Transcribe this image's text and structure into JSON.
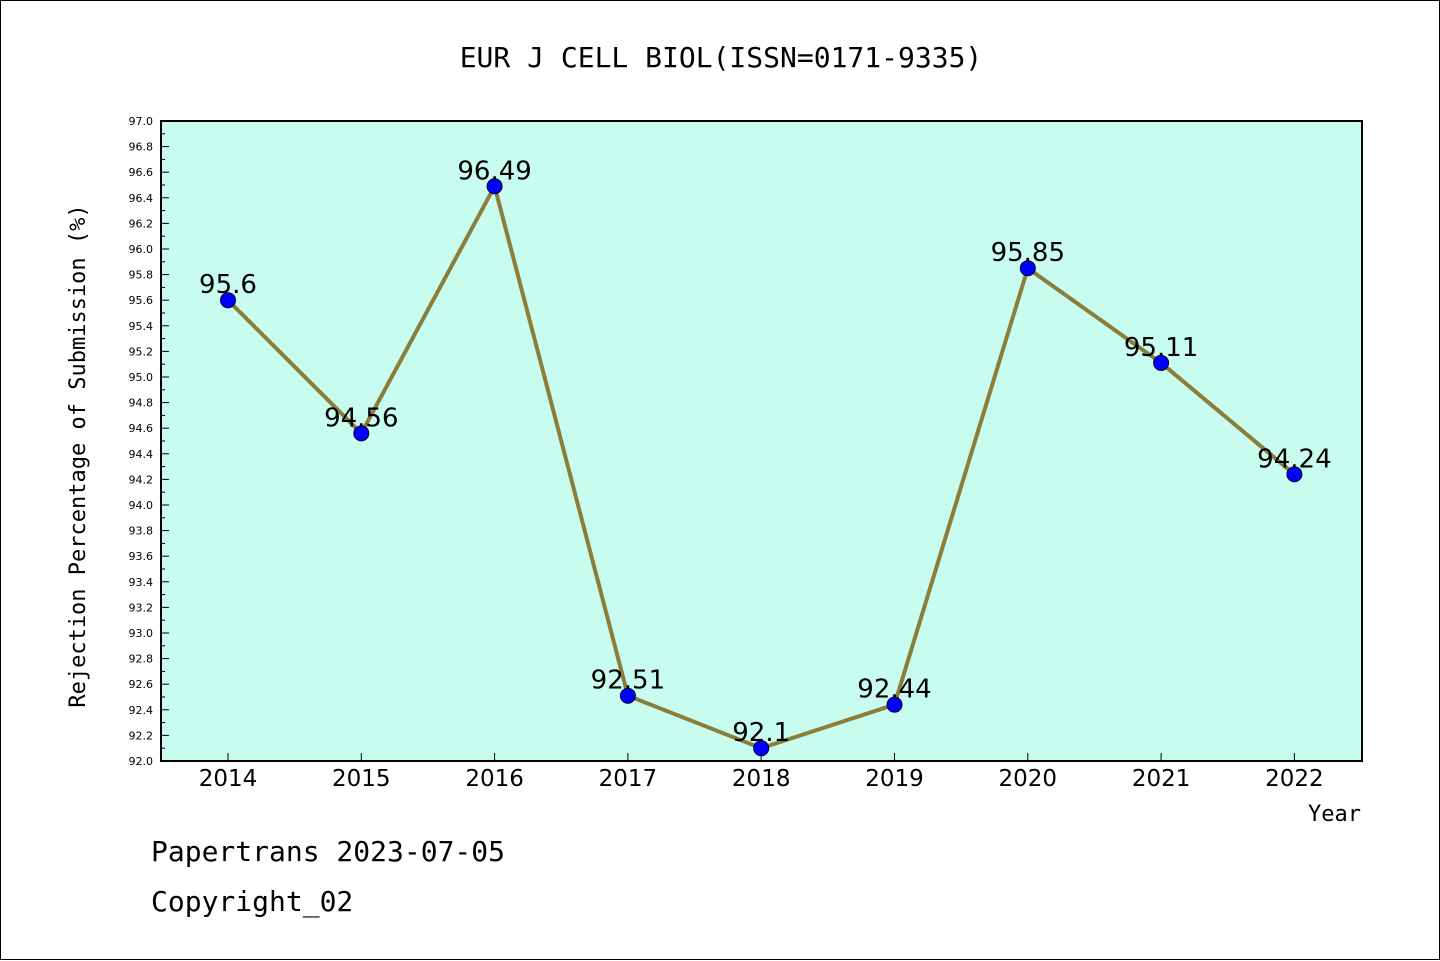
{
  "chart_data": {
    "type": "line",
    "title": "EUR J CELL BIOL(ISSN=0171-9335)",
    "xlabel": "Year",
    "ylabel": "Rejection Percentage of Submission (%)",
    "categories": [
      "2014",
      "2015",
      "2016",
      "2017",
      "2018",
      "2019",
      "2020",
      "2021",
      "2022"
    ],
    "series": [
      {
        "values": [
          95.6,
          94.56,
          96.49,
          92.51,
          92.1,
          92.44,
          95.85,
          95.11,
          94.24
        ],
        "data_labels": [
          "95.6",
          "94.56",
          "96.49",
          "92.51",
          "92.1",
          "92.44",
          "95.85",
          "95.11",
          "94.24"
        ]
      }
    ],
    "ylim": [
      92.0,
      97.0
    ],
    "ytick_step": 0.2,
    "yticks": [
      "92.0",
      "92.2",
      "92.4",
      "92.6",
      "92.8",
      "93.0",
      "93.2",
      "93.4",
      "93.6",
      "93.8",
      "94.0",
      "94.2",
      "94.4",
      "94.6",
      "94.8",
      "95.0",
      "95.2",
      "95.4",
      "95.6",
      "95.8",
      "96.0",
      "96.2",
      "96.4",
      "96.6",
      "96.8",
      "97.0"
    ],
    "grid": false,
    "legend": "none",
    "colors": {
      "plot_background": "#c8fcee",
      "line": "#8b7d3a",
      "marker": "#0000ff"
    }
  },
  "footer": {
    "line1": "Papertrans 2023-07-05",
    "line2": "Copyright_02"
  }
}
